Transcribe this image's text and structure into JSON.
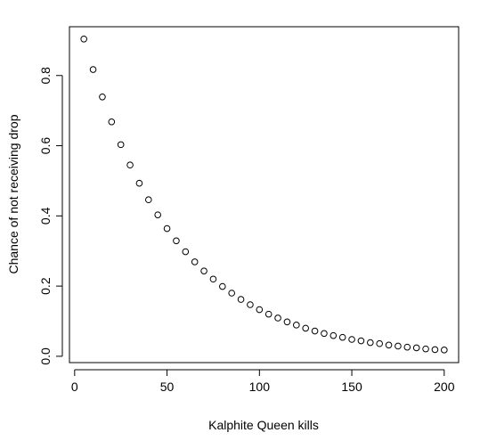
{
  "chart_data": {
    "type": "scatter",
    "x_label": "Kalphite Queen kills",
    "y_label": "Chance of not receiving drop",
    "x": [
      5,
      10,
      15,
      20,
      25,
      30,
      35,
      40,
      45,
      50,
      55,
      60,
      65,
      70,
      75,
      80,
      85,
      90,
      95,
      100,
      105,
      110,
      115,
      120,
      125,
      130,
      135,
      140,
      145,
      150,
      155,
      160,
      165,
      170,
      175,
      180,
      185,
      190,
      195,
      200
    ],
    "values": [
      0.904,
      0.817,
      0.739,
      0.668,
      0.603,
      0.545,
      0.493,
      0.446,
      0.403,
      0.364,
      0.329,
      0.298,
      0.269,
      0.243,
      0.22,
      0.199,
      0.18,
      0.162,
      0.147,
      0.133,
      0.12,
      0.109,
      0.098,
      0.089,
      0.08,
      0.072,
      0.065,
      0.059,
      0.054,
      0.048,
      0.044,
      0.039,
      0.036,
      0.032,
      0.029,
      0.026,
      0.024,
      0.021,
      0.019,
      0.018
    ],
    "color": "#000000",
    "xlim": [
      -2.8,
      207.8
    ],
    "ylim": [
      -0.018,
      0.939
    ],
    "xticks": [
      0,
      50,
      100,
      150,
      200
    ],
    "yticks": [
      {
        "value": 0,
        "label": "0.0"
      },
      0.2,
      0.4,
      0.6,
      0.8
    ]
  }
}
